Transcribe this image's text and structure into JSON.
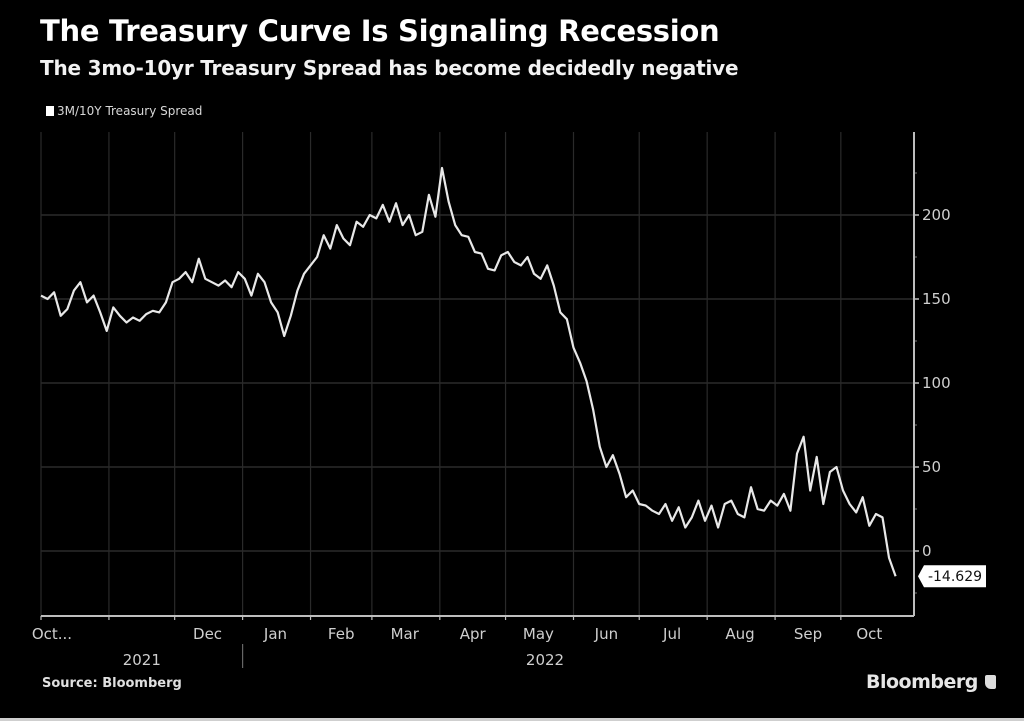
{
  "header": {
    "title": "The Treasury Curve Is Signaling Recession",
    "subtitle": "The 3mo-10yr Treasury Spread has become decidedly negative"
  },
  "footer": {
    "source": "Source: Bloomberg",
    "brand": "Bloomberg"
  },
  "colors": {
    "background": "#000000",
    "line": "#e8e8e8",
    "grid": "#2a2a2a",
    "axis": "#bdbdbd"
  },
  "chart_data": {
    "type": "line",
    "title": "The Treasury Curve Is Signaling Recession",
    "subtitle": "The 3mo-10yr Treasury Spread has become decidedly negative",
    "xlabel": "",
    "ylabel": "",
    "legend": [
      "3M/10Y Treasury Spread"
    ],
    "legend_position": "top-left",
    "ylim": [
      -38,
      250
    ],
    "yticks": [
      0,
      50,
      100,
      150,
      200
    ],
    "ytick_labels": [
      "0",
      "50",
      "100",
      "150",
      "200"
    ],
    "grid": true,
    "x_month_ticks_day_index": [
      0,
      31,
      61,
      92,
      123,
      151,
      182,
      212,
      243,
      273,
      304,
      335,
      365
    ],
    "x_tick_labels": [
      "Oct...",
      "Dec",
      "Jan",
      "Feb",
      "Mar",
      "Apr",
      "May",
      "Jun",
      "Jul",
      "Aug",
      "Sep",
      "Oct"
    ],
    "x_tick_label_day_index": [
      5,
      76,
      107,
      137,
      166,
      197,
      227,
      258,
      288,
      319,
      350,
      378
    ],
    "year_labels": [
      {
        "label": "2021",
        "day_index": 46
      },
      {
        "label": "2022",
        "day_index": 230
      }
    ],
    "year_divider_day_index": 92,
    "last_value_label": "-14.629",
    "series": [
      {
        "name": "3M/10Y Treasury Spread",
        "x": [
          0,
          3,
          6,
          9,
          12,
          15,
          18,
          21,
          24,
          27,
          30,
          33,
          36,
          39,
          42,
          45,
          48,
          51,
          54,
          57,
          60,
          63,
          66,
          69,
          72,
          75,
          78,
          81,
          84,
          87,
          90,
          93,
          96,
          99,
          102,
          105,
          108,
          111,
          114,
          117,
          120,
          123,
          126,
          129,
          132,
          135,
          138,
          141,
          144,
          147,
          150,
          153,
          156,
          159,
          162,
          165,
          168,
          171,
          174,
          177,
          180,
          183,
          186,
          189,
          192,
          195,
          198,
          201,
          204,
          207,
          210,
          213,
          216,
          219,
          222,
          225,
          228,
          231,
          234,
          237,
          240,
          243,
          246,
          249,
          252,
          255,
          258,
          261,
          264,
          267,
          270,
          273,
          276,
          279,
          282,
          285,
          288,
          291,
          294,
          297,
          300,
          303,
          306,
          309,
          312,
          315,
          318,
          321,
          324,
          327,
          330,
          333,
          336,
          339,
          342,
          345,
          348,
          351,
          354,
          357,
          360,
          363,
          366,
          369,
          372,
          375,
          378,
          381,
          384,
          387,
          390
        ],
        "values": [
          152,
          150,
          154,
          140,
          144,
          155,
          160,
          148,
          152,
          142,
          131,
          145,
          140,
          136,
          139,
          137,
          141,
          143,
          142,
          148,
          160,
          162,
          166,
          160,
          174,
          162,
          160,
          158,
          161,
          157,
          166,
          162,
          152,
          165,
          160,
          148,
          142,
          128,
          140,
          155,
          165,
          170,
          175,
          188,
          180,
          194,
          186,
          182,
          196,
          193,
          200,
          198,
          206,
          196,
          207,
          194,
          200,
          188,
          190,
          212,
          199,
          228,
          208,
          194,
          188,
          187,
          178,
          177,
          168,
          167,
          176,
          178,
          172,
          170,
          175,
          165,
          162,
          170,
          158,
          142,
          138,
          121,
          112,
          101,
          84,
          62,
          50,
          57,
          46,
          32,
          36,
          28,
          27,
          24,
          22,
          28,
          18,
          26,
          14,
          20,
          30,
          18,
          27,
          14,
          28,
          30,
          22,
          20,
          38,
          25,
          24,
          30,
          27,
          34,
          24,
          58,
          68,
          36,
          56,
          28,
          47,
          50,
          36,
          28,
          23,
          32,
          15,
          22,
          20,
          -4,
          -15
        ]
      }
    ]
  }
}
